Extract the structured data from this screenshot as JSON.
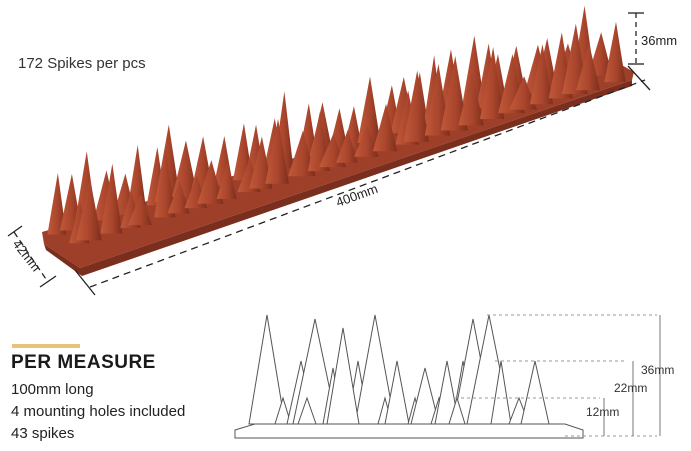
{
  "product": {
    "spikes_per_pcs": "172 Spikes per pcs",
    "length_label": "400mm",
    "width_label": "42mm",
    "height_label": "36mm",
    "color": "#a1402a"
  },
  "measure": {
    "title": "PER MEASURE",
    "specs": [
      "100mm long",
      "4 mounting holes included",
      "43 spikes"
    ],
    "accent_color": "#e8c27a"
  },
  "diagram": {
    "dim_36": "36mm",
    "dim_22": "22mm",
    "dim_12": "12mm"
  }
}
